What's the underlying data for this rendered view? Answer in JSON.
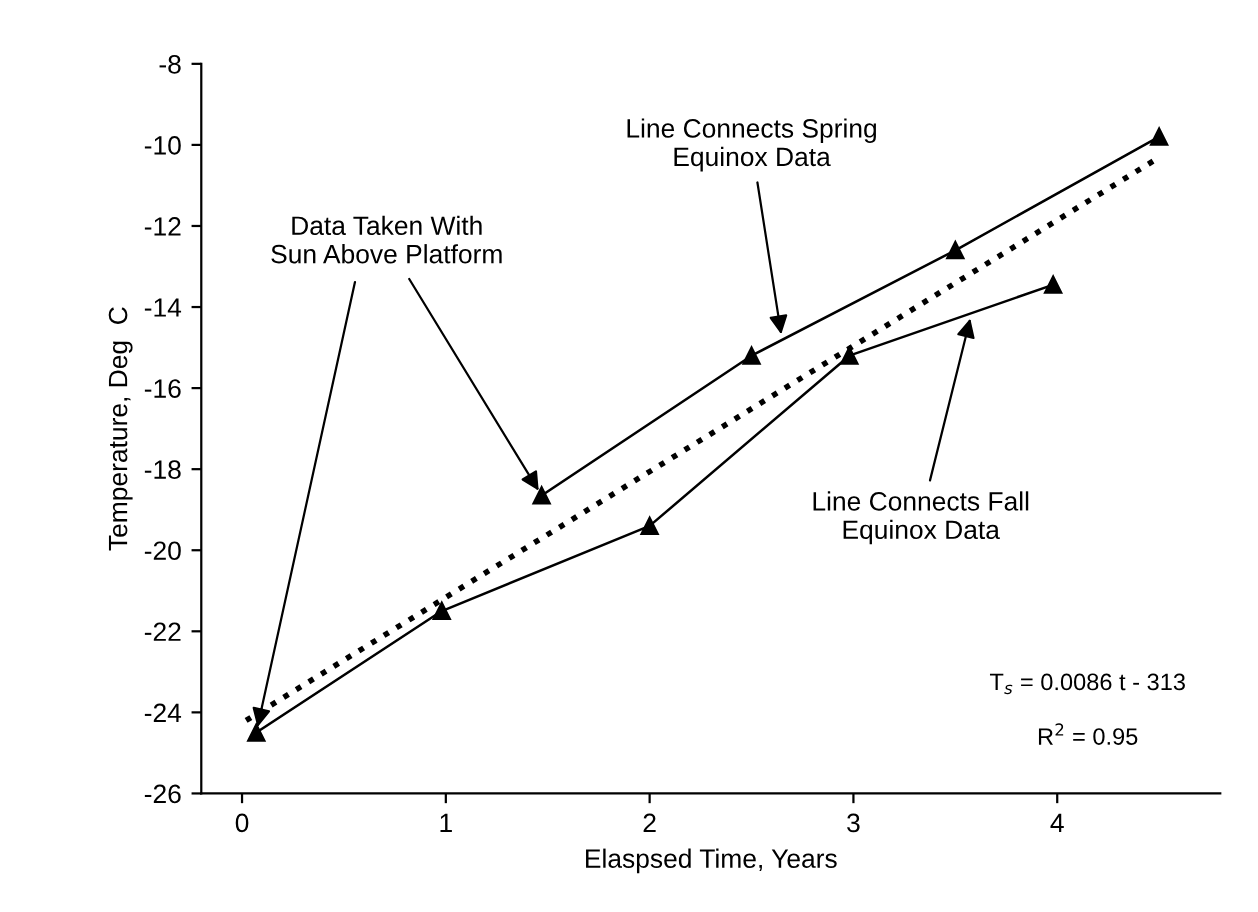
{
  "chart_data": {
    "type": "line",
    "xlabel": "Elaspsed Time, Years",
    "ylabel": "Temperature, Deg  C",
    "xlim": [
      -0.2,
      4.8
    ],
    "xticks": [
      0,
      1,
      2,
      3,
      4
    ],
    "ylim": [
      -26,
      -8
    ],
    "yticks": [
      -26,
      -24,
      -22,
      -20,
      -18,
      -16,
      -14,
      -12,
      -10,
      -8
    ],
    "grid": false,
    "legend": false,
    "series": [
      {
        "color": "#000000",
        "marker": "triangle",
        "line_style": "solid",
        "x": [
          0.07,
          0.98,
          2.0,
          2.98,
          3.98
        ],
        "values": [
          -24.5,
          -21.5,
          -19.4,
          -15.2,
          -13.45
        ]
      },
      {
        "color": "#000000",
        "marker": "triangle",
        "line_style": "solid",
        "x": [
          1.47,
          2.5,
          3.5,
          4.5
        ],
        "values": [
          -18.65,
          -15.2,
          -12.6,
          -9.8
        ]
      },
      {
        "color": "#000000",
        "marker": "none",
        "line_style": "dotted",
        "x": [
          0.02,
          4.47
        ],
        "values": [
          -24.2,
          -10.4
        ]
      }
    ],
    "annotations": [
      {
        "text": "Data Taken With\nSun Above Platform",
        "x": 1.47,
        "y": -18.65
      },
      {
        "text": "Line Connects Spring\nEquinox Data",
        "x": 2.65,
        "y": -14.81
      },
      {
        "text": "Line Connects Fall\nEquinox Data",
        "x": 3.58,
        "y": -14.15
      },
      "T$_{s}$ = 0.0086 t - 313",
      "R$^{2}$ = 0.95"
    ]
  }
}
